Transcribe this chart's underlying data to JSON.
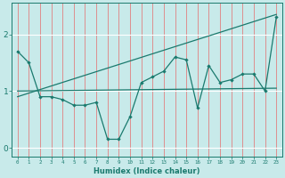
{
  "xlabel": "Humidex (Indice chaleur)",
  "background_color": "#c8eaea",
  "grid_color_v": "#e08080",
  "grid_color_h": "#ffffff",
  "line_color": "#1a7a6e",
  "xlim": [
    -0.5,
    23.5
  ],
  "ylim": [
    -0.15,
    2.55
  ],
  "yticks": [
    0,
    1,
    2
  ],
  "xticks": [
    0,
    1,
    2,
    3,
    4,
    5,
    6,
    7,
    8,
    9,
    10,
    11,
    12,
    13,
    14,
    15,
    16,
    17,
    18,
    19,
    20,
    21,
    22,
    23
  ],
  "series1_x": [
    0,
    1,
    2,
    3,
    4,
    5,
    6,
    7,
    8,
    9,
    10,
    11,
    12,
    13,
    14,
    15,
    16,
    17,
    18,
    19,
    20,
    21,
    22,
    23
  ],
  "series1_y": [
    1.7,
    1.5,
    0.9,
    0.9,
    0.85,
    0.75,
    0.75,
    0.8,
    0.15,
    0.15,
    0.55,
    1.15,
    1.25,
    1.35,
    1.6,
    1.55,
    0.7,
    1.45,
    1.15,
    1.2,
    1.3,
    1.3,
    1.0,
    2.3
  ],
  "series2_x": [
    0,
    23
  ],
  "series2_y": [
    0.9,
    2.35
  ],
  "series3_x": [
    0,
    23
  ],
  "series3_y": [
    1.0,
    1.05
  ]
}
